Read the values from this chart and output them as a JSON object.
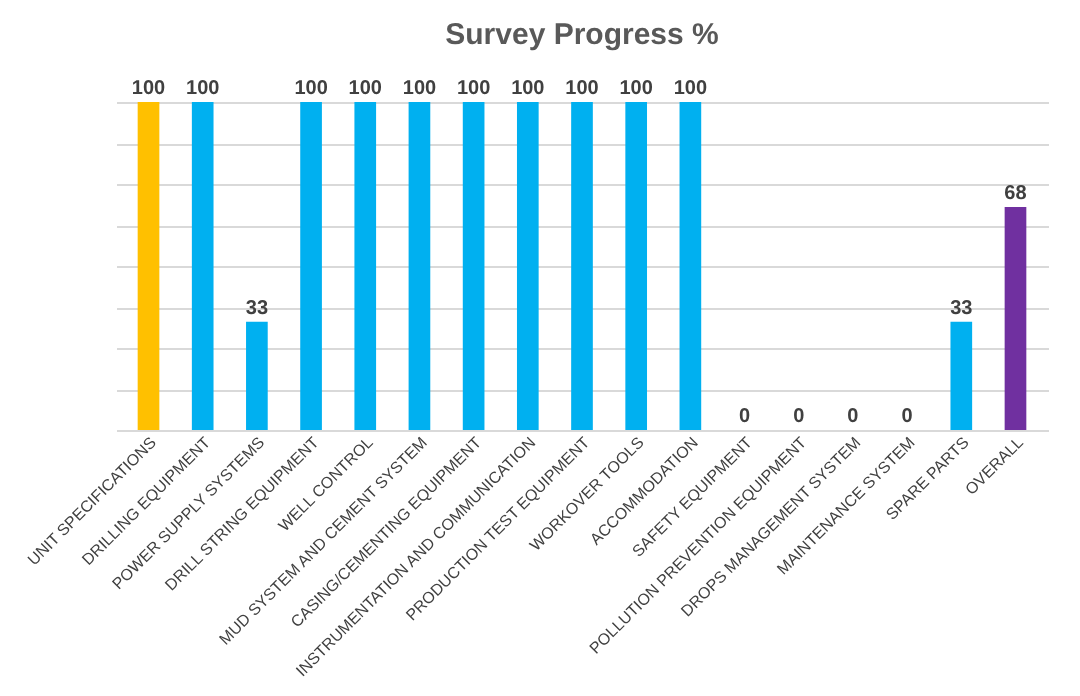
{
  "chart_data": {
    "type": "bar",
    "title": "Survey Progress %",
    "categories": [
      "UNIT SPECIFICATIONS",
      "DRILLING EQUIPMENT",
      "POWER SUPPLY SYSTEMS",
      "DRILL STRING EQUIPMENT",
      "WELL CONTROL",
      "MUD SYSTEM AND CEMENT SYSTEM",
      "CASING/CEMENTING EQUIPMENT",
      "INSTRUMENTATION AND COMMUNICATION",
      "PRODUCTION TEST EQUIPMENT",
      "WORKOVER TOOLS",
      "ACCOMMODATION",
      "SAFETY EQUIPMENT",
      "POLLUTION PREVENTION EQUIPMENT",
      "DROPS MANAGEMENT SYSTEM",
      "MAINTENANCE SYSTEM",
      "SPARE PARTS",
      "OVERALL"
    ],
    "values": [
      100,
      100,
      33,
      100,
      100,
      100,
      100,
      100,
      100,
      100,
      100,
      0,
      0,
      0,
      0,
      33,
      68
    ],
    "colors": [
      "#ffc000",
      "#00b0f0",
      "#00b0f0",
      "#00b0f0",
      "#00b0f0",
      "#00b0f0",
      "#00b0f0",
      "#00b0f0",
      "#00b0f0",
      "#00b0f0",
      "#00b0f0",
      "#00b0f0",
      "#00b0f0",
      "#00b0f0",
      "#00b0f0",
      "#00b0f0",
      "#7030a0"
    ],
    "ylim": [
      0,
      100
    ],
    "yticks": [
      {
        "value": 0,
        "label": null
      },
      {
        "value": 12.5,
        "label": null
      },
      {
        "value": 25,
        "label": null
      },
      {
        "value": 37.5,
        "label": null
      },
      {
        "value": 50,
        "label": null
      },
      {
        "value": 62.5,
        "label": null
      },
      {
        "value": 75,
        "label": null
      },
      {
        "value": 87.5,
        "label": null
      },
      {
        "value": 100,
        "label": null
      }
    ],
    "grid": "y",
    "tick_labels": "x",
    "data_labels": true
  }
}
